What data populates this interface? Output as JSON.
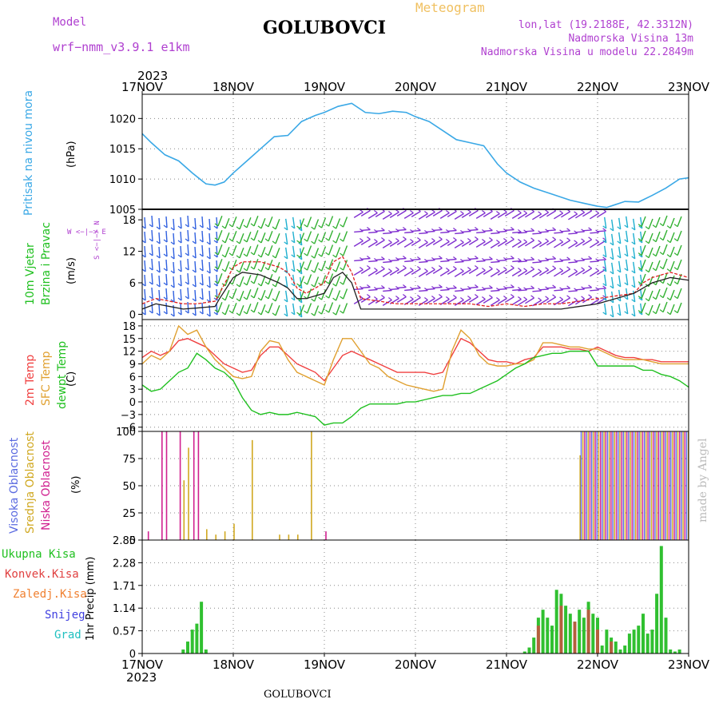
{
  "header": {
    "model_label": "Model",
    "model_name": "wrf−nmm_v3.9.1  e1km",
    "station": "GOLUBOVCI",
    "meteogram": "Meteogram",
    "lonlat": "lon,lat (19.2188E, 42.3312N)",
    "elevation": "Nadmorska Visina 13m",
    "model_elevation": "Nadmorska Visina u modelu 22.2849m"
  },
  "footer": {
    "station": "GOLUBOVCI",
    "watermark": "made by Angel"
  },
  "time_axis": {
    "top_year": "2023",
    "bottom_year": "2023",
    "days": [
      "17NOV",
      "18NOV",
      "19NOV",
      "20NOV",
      "21NOV",
      "22NOV",
      "23NOV"
    ]
  },
  "colors": {
    "pressure": "#3aa8e6",
    "temp2m": "#f04040",
    "sfc": "#e0a030",
    "dewpt": "#20c020",
    "high": "#5a6ae0",
    "mid": "#d0a820",
    "low": "#d02090",
    "total": "#30c030",
    "conv": "#e04040",
    "strat": "#f08030",
    "snow": "#4040e0",
    "hail": "#20c0c0",
    "wind_speed": "#e02020",
    "gust": "#202020"
  },
  "chart_data": [
    {
      "type": "line",
      "panel": "pressure",
      "ylabel_left": "Pritisak na nivou mora",
      "unit": "(hPa)",
      "ylim": [
        1005,
        1024
      ],
      "yticks": [
        "1005",
        "1010",
        "1015",
        "1020"
      ],
      "grid": true,
      "x_day": [
        0,
        0.1,
        0.25,
        0.4,
        0.55,
        0.7,
        0.8,
        0.9,
        1,
        1.15,
        1.3,
        1.45,
        1.6,
        1.75,
        1.9,
        2,
        2.15,
        2.3,
        2.45,
        2.6,
        2.75,
        2.9,
        3,
        3.15,
        3.3,
        3.45,
        3.6,
        3.75,
        3.9,
        4,
        4.15,
        4.3,
        4.5,
        4.7,
        4.85,
        5,
        5.1,
        5.2,
        5.3,
        5.45,
        5.6,
        5.75,
        5.9,
        6
      ],
      "values": [
        1017.5,
        1016,
        1014,
        1013,
        1011,
        1009.2,
        1009,
        1009.5,
        1011,
        1013,
        1015,
        1017,
        1017.2,
        1019.5,
        1020.5,
        1021,
        1022,
        1022.5,
        1021,
        1020.8,
        1021.2,
        1021,
        1020.3,
        1019.5,
        1018,
        1016.5,
        1016,
        1015.5,
        1012.5,
        1011,
        1009.5,
        1008.5,
        1007.5,
        1006.5,
        1006,
        1005.5,
        1005.3,
        1005.8,
        1006.3,
        1006.2,
        1007.3,
        1008.5,
        1010,
        1010.2
      ],
      "series": [
        {
          "name": "Pritisak na nivou mora"
        }
      ]
    },
    {
      "type": "line",
      "panel": "wind",
      "ylabel_left": [
        "10m Vjetar",
        "Brzina i Pravac"
      ],
      "unit": "(m/s)",
      "compass": "W <−|−> E",
      "compass_v": "S <−|−> N",
      "ylim": [
        -1,
        20
      ],
      "yticks": [
        "0",
        "6",
        "12",
        "18"
      ],
      "x_day": [
        0,
        0.15,
        0.3,
        0.45,
        0.6,
        0.8,
        0.85,
        1,
        1.1,
        1.3,
        1.5,
        1.6,
        1.7,
        1.8,
        1.9,
        2,
        2.1,
        2.2,
        2.3,
        2.4,
        2.6,
        2.8,
        3,
        3.2,
        3.4,
        3.6,
        3.8,
        4,
        4.2,
        4.4,
        4.6,
        4.8,
        5,
        5.2,
        5.4,
        5.5,
        5.6,
        5.8,
        6
      ],
      "series": [
        {
          "name": "brzina",
          "values": [
            2,
            3,
            2.5,
            2,
            2,
            2.5,
            4,
            9,
            10,
            10,
            9,
            8,
            5,
            4,
            5,
            6,
            10,
            11,
            8,
            3,
            2.5,
            2,
            2,
            2,
            2,
            2,
            1.5,
            2,
            1.5,
            2,
            2,
            2.5,
            3,
            3.5,
            4,
            6,
            7,
            8,
            7
          ]
        },
        {
          "name": "udar",
          "values": [
            1,
            2,
            1.5,
            1,
            1.2,
            1.5,
            3,
            7,
            8,
            7.5,
            6,
            5,
            3,
            3,
            3.5,
            4,
            7,
            8,
            6,
            1,
            1,
            1,
            1,
            1,
            1,
            1,
            1,
            1,
            1,
            1,
            1,
            1.5,
            2,
            3,
            4,
            5,
            6,
            7,
            6.5
          ]
        }
      ],
      "barb_bands": [
        {
          "from": 0,
          "to": 0.85,
          "color": "#3060e0"
        },
        {
          "from": 0.85,
          "to": 1.55,
          "color": "#30b030"
        },
        {
          "from": 1.55,
          "to": 1.75,
          "color": "#20b0d0"
        },
        {
          "from": 1.75,
          "to": 2.3,
          "color": "#30b030"
        },
        {
          "from": 2.3,
          "to": 4.1,
          "color": "#8030d0"
        },
        {
          "from": 4.1,
          "to": 5.05,
          "color": "#8030d0"
        },
        {
          "from": 5.05,
          "to": 5.5,
          "color": "#20b0d0"
        },
        {
          "from": 5.5,
          "to": 6,
          "color": "#30b030"
        }
      ]
    },
    {
      "type": "line",
      "panel": "temperature",
      "ylabel_left": [
        "2m Temp",
        "SFC Temp",
        "dewpt Temp"
      ],
      "unit": "(C)",
      "ylim": [
        -7,
        19.5
      ],
      "yticks": [
        "−6",
        "−3",
        "0",
        "3",
        "6",
        "9",
        "12",
        "15",
        "18"
      ],
      "x_day": [
        0,
        0.1,
        0.2,
        0.3,
        0.4,
        0.5,
        0.6,
        0.7,
        0.8,
        0.9,
        1,
        1.1,
        1.2,
        1.3,
        1.4,
        1.5,
        1.6,
        1.7,
        1.8,
        1.9,
        2,
        2.1,
        2.2,
        2.3,
        2.4,
        2.5,
        2.6,
        2.7,
        2.8,
        2.9,
        3,
        3.1,
        3.2,
        3.3,
        3.4,
        3.5,
        3.6,
        3.7,
        3.8,
        3.9,
        4,
        4.1,
        4.2,
        4.3,
        4.4,
        4.5,
        4.6,
        4.7,
        4.8,
        4.9,
        5,
        5.1,
        5.2,
        5.3,
        5.4,
        5.5,
        5.6,
        5.7,
        5.8,
        5.9,
        6
      ],
      "series": [
        {
          "name": "2m Temp",
          "values": [
            10.5,
            12,
            11,
            12,
            14.5,
            15,
            14,
            13,
            11,
            9,
            8,
            7,
            7.5,
            11,
            13,
            13,
            11,
            9,
            8,
            7,
            5,
            8,
            11,
            12,
            11,
            10,
            9,
            8,
            7,
            7,
            7,
            7,
            6.5,
            7,
            11,
            15,
            14,
            12,
            10,
            9.5,
            9.5,
            9,
            10,
            10.5,
            13,
            13,
            13,
            12.5,
            12.5,
            12,
            13,
            12,
            11,
            10.5,
            10.5,
            10,
            10,
            9.5,
            9.5,
            9.5,
            9.5
          ]
        },
        {
          "name": "SFC Temp",
          "values": [
            9,
            11,
            10,
            12,
            18,
            16,
            17,
            13,
            10,
            8,
            6,
            5.5,
            6,
            12,
            14.5,
            14,
            10,
            7,
            6,
            5,
            4,
            10,
            15,
            15,
            12,
            9,
            8,
            6,
            5,
            4,
            3.5,
            3,
            2.5,
            3,
            12,
            17,
            15,
            11,
            9,
            8.5,
            8.5,
            9,
            9,
            10,
            14,
            14,
            13.5,
            13,
            13,
            12.5,
            12.5,
            11.5,
            10.5,
            10,
            10,
            10,
            9.5,
            9,
            9,
            9,
            9
          ]
        },
        {
          "name": "dewpt Temp",
          "values": [
            4,
            2.5,
            3,
            5,
            7,
            8,
            11.5,
            10,
            8,
            7,
            5,
            1,
            -2,
            -3,
            -2.5,
            -3,
            -3,
            -2.5,
            -3,
            -3.5,
            -5.5,
            -5,
            -5,
            -3.5,
            -1.5,
            -0.5,
            -0.5,
            -0.5,
            -0.5,
            0,
            0,
            0.5,
            1,
            1.5,
            1.5,
            2,
            2,
            3,
            4,
            5,
            6.5,
            8,
            9,
            10.5,
            11,
            11.5,
            11.5,
            12,
            12,
            12,
            8.5,
            8.5,
            8.5,
            8.5,
            8.5,
            7.5,
            7.5,
            6.5,
            6,
            5,
            3.5
          ]
        }
      ]
    },
    {
      "type": "bar",
      "panel": "cloud",
      "ylabel_left": [
        "Visoka Oblacnost",
        "Srednja Oblacnost",
        "Niska Oblacnost"
      ],
      "unit": "(%)",
      "ylim": [
        0,
        100
      ],
      "yticks": [
        "0",
        "25",
        "50",
        "75",
        "100"
      ],
      "series": [
        {
          "name": "Visoka Oblacnost",
          "x_day": [
            2.1,
            4.9,
            5.9
          ],
          "values": [
            0,
            0,
            0
          ]
        },
        {
          "name": "Srednja Oblacnost",
          "x_day": [
            0.45,
            0.5,
            0.7,
            0.8,
            0.9,
            1.0,
            1.2,
            1.5,
            1.6,
            1.7,
            1.85,
            4.8
          ],
          "values": [
            55,
            85,
            10,
            5,
            8,
            15,
            92,
            5,
            5,
            5,
            100,
            78
          ]
        },
        {
          "name": "Niska Oblacnost",
          "x_day": [
            0.05,
            0.2,
            0.25,
            0.4,
            0.55,
            0.6,
            2.0,
            4.8
          ],
          "values": [
            8,
            100,
            100,
            100,
            100,
            100,
            8,
            0
          ]
        }
      ],
      "dense_block": {
        "from_day": 4.82,
        "to_day": 6.0,
        "value": 100
      }
    },
    {
      "type": "bar",
      "panel": "precip",
      "ylabel_left": [
        "Ukupna Kisa",
        "Konvek.Kisa",
        "Zaledj.Kisa",
        "Snijeg",
        "Grad"
      ],
      "unit": "1hr Precip (mm)",
      "ylim": [
        0,
        2.85
      ],
      "yticks": [
        "0",
        "0.57",
        "1.14",
        "1.71",
        "2.28",
        "2.85"
      ],
      "series": [
        {
          "name": "Ukupna Kisa",
          "x_day": [
            0.45,
            0.5,
            0.55,
            0.6,
            0.65,
            0.7,
            4.2,
            4.25,
            4.3,
            4.35,
            4.4,
            4.45,
            4.5,
            4.55,
            4.6,
            4.65,
            4.7,
            4.75,
            4.8,
            4.85,
            4.9,
            4.95,
            5.0,
            5.05,
            5.1,
            5.15,
            5.2,
            5.25,
            5.3,
            5.35,
            5.4,
            5.45,
            5.5,
            5.55,
            5.6,
            5.65,
            5.7,
            5.75,
            5.8,
            5.85,
            5.9
          ],
          "values": [
            0.1,
            0.3,
            0.6,
            0.75,
            1.3,
            0.1,
            0.05,
            0.15,
            0.4,
            0.9,
            1.1,
            0.9,
            0.7,
            1.6,
            1.5,
            1.2,
            1.0,
            0.8,
            1.1,
            0.9,
            1.3,
            1.0,
            0.9,
            0.2,
            0.6,
            0.4,
            0.3,
            0.1,
            0.2,
            0.5,
            0.6,
            0.7,
            1.0,
            0.5,
            0.6,
            1.5,
            2.7,
            0.9,
            0.1,
            0.05,
            0.1
          ]
        },
        {
          "name": "Konvek.Kisa",
          "x_day": [
            4.35,
            4.6,
            4.75,
            4.9,
            5.0,
            5.15
          ],
          "values": [
            0.7,
            1.2,
            0.8,
            1.1,
            0.6,
            0.3
          ]
        }
      ]
    }
  ]
}
